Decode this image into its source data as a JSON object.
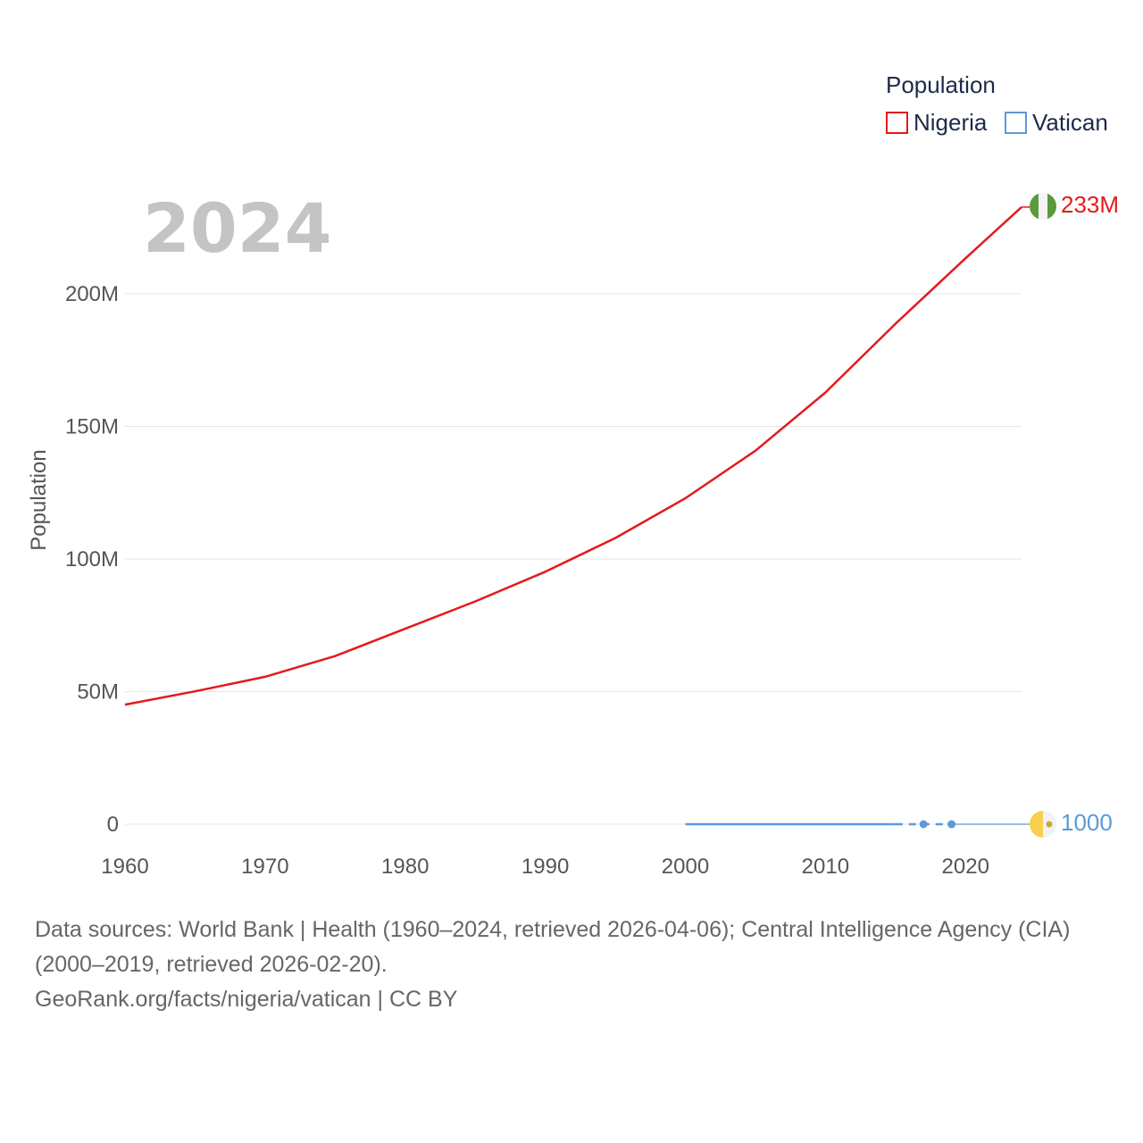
{
  "chart_data": {
    "type": "line",
    "year_display": "2024",
    "ylabel": "Population",
    "xlabel": "",
    "xlim": [
      1960,
      2024
    ],
    "ylim": [
      0,
      233000000
    ],
    "x_ticks": [
      1960,
      1970,
      1980,
      1990,
      2000,
      2010,
      2020
    ],
    "y_ticks": [
      {
        "value": 0,
        "label": "0"
      },
      {
        "value": 50000000,
        "label": "50M"
      },
      {
        "value": 100000000,
        "label": "100M"
      },
      {
        "value": 150000000,
        "label": "150M"
      },
      {
        "value": 200000000,
        "label": "200M"
      }
    ],
    "grid": true,
    "legend": {
      "title": "Population",
      "placement": "top-right",
      "entries": [
        {
          "name": "Nigeria",
          "color": "#e41a1c"
        },
        {
          "name": "Vatican",
          "color": "#5b9bd5"
        }
      ]
    },
    "series": [
      {
        "name": "Nigeria",
        "color": "#e41a1c",
        "end_label": "233M",
        "x": [
          1960,
          1965,
          1970,
          1975,
          1980,
          1985,
          1990,
          1995,
          2000,
          2005,
          2010,
          2015,
          2020,
          2024
        ],
        "values": [
          45100000,
          50100000,
          55600000,
          63400000,
          73700000,
          84000000,
          95200000,
          107900000,
          122900000,
          140800000,
          162800000,
          188700000,
          213400000,
          232700000
        ]
      },
      {
        "name": "Vatican",
        "color": "#5b9bd5",
        "end_label": "1000",
        "x": [
          2000,
          2005,
          2010,
          2015,
          2017,
          2019,
          2024
        ],
        "values": [
          890,
          920,
          830,
          840,
          1000,
          1000,
          1000
        ],
        "markers_at": [
          2017,
          2019
        ]
      }
    ]
  },
  "footer": {
    "sources": "Data sources: World Bank | Health (1960–2024, retrieved 2026-04-06); Central Intelligence Agency (CIA) (2000–2019, retrieved 2026-02-20).",
    "link": "GeoRank.org/facts/nigeria/vatican | CC BY"
  }
}
